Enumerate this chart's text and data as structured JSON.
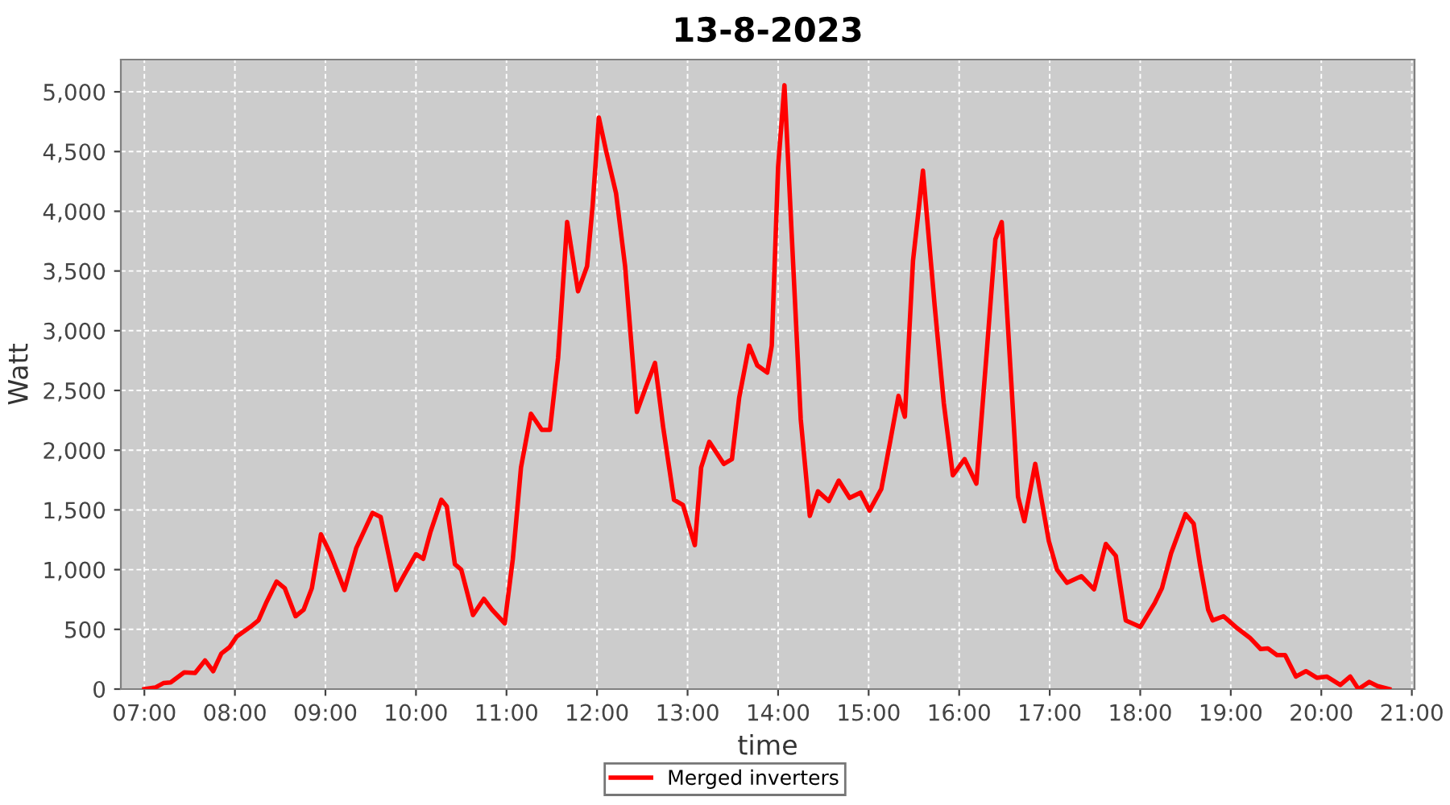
{
  "chart_data": {
    "type": "line",
    "title": "13-8-2023",
    "xlabel": "time",
    "ylabel": "Watt",
    "xlim": [
      6.74,
      21.03
    ],
    "xticks": [
      {
        "value": 7,
        "label": "07:00"
      },
      {
        "value": 8,
        "label": "08:00"
      },
      {
        "value": 9,
        "label": "09:00"
      },
      {
        "value": 10,
        "label": "10:00"
      },
      {
        "value": 11,
        "label": "11:00"
      },
      {
        "value": 12,
        "label": "12:00"
      },
      {
        "value": 13,
        "label": "13:00"
      },
      {
        "value": 14,
        "label": "14:00"
      },
      {
        "value": 15,
        "label": "15:00"
      },
      {
        "value": 16,
        "label": "16:00"
      },
      {
        "value": 17,
        "label": "17:00"
      },
      {
        "value": 18,
        "label": "18:00"
      },
      {
        "value": 19,
        "label": "19:00"
      },
      {
        "value": 20,
        "label": "20:00"
      },
      {
        "value": 21,
        "label": "21:00"
      }
    ],
    "ylim": [
      0,
      5270
    ],
    "yticks": [
      0,
      500,
      {
        "value": 1000,
        "label": "1,000"
      },
      {
        "value": 1500,
        "label": "1,500"
      },
      {
        "value": 2000,
        "label": "2,000"
      },
      {
        "value": 2500,
        "label": "2,500"
      },
      {
        "value": 3000,
        "label": "3,000"
      },
      {
        "value": 3500,
        "label": "3,500"
      },
      {
        "value": 4000,
        "label": "4,000"
      },
      {
        "value": 4500,
        "label": "4,500"
      },
      {
        "value": 5000,
        "label": "5,000"
      }
    ],
    "grid": true,
    "legend": "bottom",
    "marker": "none",
    "line_style": "solid",
    "series": [
      {
        "name": "Merged inverters",
        "color": "#ff0000",
        "x": [
          7.0,
          7.12,
          7.21,
          7.29,
          7.44,
          7.56,
          7.67,
          7.76,
          7.85,
          7.94,
          8.02,
          8.17,
          8.26,
          8.35,
          8.46,
          8.55,
          8.67,
          8.76,
          8.85,
          8.95,
          9.05,
          9.21,
          9.34,
          9.52,
          9.61,
          9.78,
          9.87,
          10.0,
          10.08,
          10.16,
          10.28,
          10.34,
          10.43,
          10.5,
          10.63,
          10.75,
          10.84,
          10.98,
          11.07,
          11.16,
          11.27,
          11.39,
          11.48,
          11.57,
          11.67,
          11.79,
          11.89,
          11.95,
          12.02,
          12.1,
          12.21,
          12.31,
          12.44,
          12.54,
          12.64,
          12.73,
          12.85,
          12.95,
          13.08,
          13.15,
          13.24,
          13.4,
          13.49,
          13.57,
          13.68,
          13.77,
          13.88,
          13.93,
          14.0,
          14.07,
          14.15,
          14.25,
          14.35,
          14.44,
          14.56,
          14.67,
          14.79,
          14.91,
          15.01,
          15.14,
          15.24,
          15.33,
          15.4,
          15.49,
          15.6,
          15.73,
          15.83,
          15.93,
          16.06,
          16.19,
          16.31,
          16.4,
          16.47,
          16.57,
          16.65,
          16.72,
          16.84,
          16.99,
          17.08,
          17.19,
          17.35,
          17.49,
          17.62,
          17.73,
          17.84,
          18.0,
          18.16,
          18.24,
          18.34,
          18.5,
          18.59,
          18.66,
          18.75,
          18.8,
          18.92,
          19.07,
          19.21,
          19.33,
          19.41,
          19.51,
          19.6,
          19.72,
          19.83,
          19.95,
          20.06,
          20.21,
          20.32,
          20.41,
          20.53,
          20.62,
          20.75
        ],
        "values": [
          0,
          13,
          50,
          55,
          140,
          135,
          240,
          150,
          297,
          350,
          440,
          520,
          575,
          730,
          900,
          845,
          610,
          665,
          845,
          1295,
          1140,
          830,
          1180,
          1475,
          1440,
          830,
          955,
          1130,
          1090,
          1315,
          1585,
          1530,
          1045,
          1000,
          620,
          755,
          665,
          550,
          1090,
          1855,
          2305,
          2170,
          2170,
          2775,
          3910,
          3330,
          3540,
          4035,
          4785,
          4505,
          4150,
          3540,
          2320,
          2530,
          2730,
          2195,
          1585,
          1540,
          1205,
          1855,
          2070,
          1885,
          1925,
          2440,
          2875,
          2710,
          2650,
          2875,
          4370,
          5055,
          3810,
          2260,
          1450,
          1655,
          1575,
          1745,
          1600,
          1645,
          1495,
          1675,
          2080,
          2455,
          2280,
          3585,
          4340,
          3205,
          2395,
          1790,
          1925,
          1720,
          2875,
          3765,
          3910,
          2640,
          1610,
          1405,
          1885,
          1240,
          1000,
          890,
          945,
          835,
          1215,
          1115,
          575,
          520,
          720,
          845,
          1135,
          1465,
          1385,
          1045,
          665,
          575,
          610,
          510,
          430,
          335,
          340,
          285,
          285,
          105,
          150,
          95,
          105,
          35,
          105,
          0,
          60,
          25,
          0
        ]
      }
    ]
  }
}
